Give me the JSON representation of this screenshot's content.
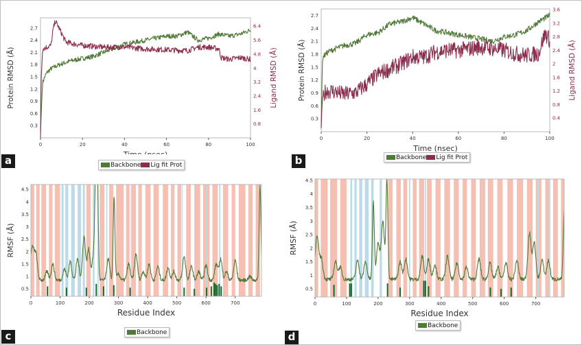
{
  "colors": {
    "backbone": "#507a37",
    "ligand": "#8b2d4e",
    "helix": "#f5bfb2",
    "strand": "#bcdbe9",
    "contact": "#16692b"
  },
  "panels": {
    "a": {
      "tag": "a",
      "legend": {
        "backbone": "Backbone",
        "ligand": "Lig fit Prot"
      }
    },
    "b": {
      "tag": "b",
      "legend": {
        "backbone": "Backbone",
        "ligand": "Lig fit Prot"
      }
    },
    "c": {
      "tag": "c",
      "legend": {
        "backbone": "Backbone"
      }
    },
    "d": {
      "tag": "d",
      "legend": {
        "backbone": "Backbone"
      }
    }
  },
  "chart_data": [
    {
      "id": "a",
      "type": "line",
      "xlabel": "Time (nsec)",
      "ylabel": "Protein RMSD (Å)",
      "y2label": "Ligand RMSD (Å)",
      "xlim": [
        0,
        100
      ],
      "ylim": [
        0,
        2.95
      ],
      "y2lim": [
        0,
        6.88
      ],
      "xticks": [
        0,
        20,
        40,
        60,
        80,
        100
      ],
      "yticks": [
        0.3,
        0.6,
        0.9,
        1.2,
        1.5,
        1.8,
        2.1,
        2.4,
        2.7
      ],
      "y2ticks": [
        0.8,
        1.6,
        2.4,
        3.2,
        4.0,
        4.8,
        5.6,
        6.4
      ],
      "legend_position": "bottom-center",
      "series": [
        {
          "name": "Backbone",
          "axis": "left",
          "noise": 0.06,
          "x": [
            0,
            0.5,
            1,
            2,
            3,
            5,
            7,
            10,
            15,
            20,
            25,
            30,
            35,
            40,
            45,
            50,
            55,
            60,
            65,
            70,
            75,
            80,
            85,
            90,
            95,
            100
          ],
          "y": [
            0.1,
            0.8,
            1.35,
            1.5,
            1.6,
            1.7,
            1.75,
            1.82,
            1.9,
            1.95,
            2.0,
            2.1,
            2.2,
            2.3,
            2.35,
            2.4,
            2.45,
            2.5,
            2.5,
            2.6,
            2.4,
            2.45,
            2.55,
            2.5,
            2.55,
            2.65
          ]
        },
        {
          "name": "Lig fit Prot",
          "axis": "right",
          "noise": 0.07,
          "x": [
            0,
            0.3,
            1,
            3,
            5,
            6,
            7,
            8,
            10,
            12,
            15,
            20,
            30,
            40,
            50,
            60,
            70,
            75,
            80,
            85,
            86,
            90,
            95,
            100
          ],
          "y": [
            0.0,
            3.3,
            5.1,
            5.2,
            5.3,
            6.2,
            6.7,
            6.5,
            6.0,
            5.5,
            5.4,
            5.3,
            5.2,
            5.2,
            5.1,
            5.05,
            5.0,
            5.2,
            5.2,
            5.1,
            4.6,
            4.5,
            4.6,
            4.5
          ]
        }
      ]
    },
    {
      "id": "b",
      "type": "line",
      "xlabel": "Time (nsec)",
      "ylabel": "Protein RMSD (Å)",
      "y2label": "Ligand RMSD (Å)",
      "xlim": [
        0,
        100
      ],
      "ylim": [
        0,
        2.85
      ],
      "y2lim": [
        0,
        3.62
      ],
      "xticks": [
        0,
        20,
        40,
        60,
        80,
        100
      ],
      "yticks": [
        0.3,
        0.6,
        0.9,
        1.2,
        1.5,
        1.8,
        2.1,
        2.4,
        2.7
      ],
      "y2ticks": [
        0.4,
        0.8,
        1.2,
        1.6,
        2.0,
        2.4,
        2.8,
        3.2,
        3.6
      ],
      "legend_position": "bottom-center",
      "series": [
        {
          "name": "Backbone",
          "axis": "left",
          "noise": 0.07,
          "x": [
            0,
            0.5,
            1,
            3,
            5,
            10,
            15,
            20,
            25,
            30,
            35,
            40,
            45,
            50,
            55,
            60,
            65,
            70,
            75,
            80,
            85,
            90,
            95,
            100
          ],
          "y": [
            0.1,
            1.6,
            1.75,
            1.85,
            1.9,
            2.0,
            2.05,
            2.25,
            2.3,
            2.5,
            2.55,
            2.65,
            2.5,
            2.35,
            2.3,
            2.25,
            2.2,
            2.15,
            2.1,
            2.2,
            2.25,
            2.35,
            2.55,
            2.7
          ]
        },
        {
          "name": "Lig fit Prot",
          "axis": "right",
          "noise": 0.2,
          "x": [
            0,
            0.5,
            2,
            5,
            10,
            15,
            20,
            25,
            30,
            35,
            40,
            45,
            50,
            55,
            60,
            65,
            70,
            75,
            80,
            85,
            90,
            95,
            98,
            100
          ],
          "y": [
            0.1,
            1.0,
            1.2,
            1.2,
            1.1,
            1.15,
            1.4,
            1.7,
            1.85,
            2.0,
            2.2,
            2.2,
            2.35,
            2.4,
            2.4,
            2.45,
            2.5,
            2.45,
            2.4,
            2.3,
            2.25,
            2.3,
            2.9,
            2.7
          ]
        }
      ]
    },
    {
      "id": "c",
      "type": "line",
      "xlabel": "Residue Index",
      "ylabel": "RMSF (Å)",
      "xlim": [
        0,
        790
      ],
      "ylim": [
        0.2,
        4.7
      ],
      "xticks": [
        0,
        100,
        200,
        300,
        400,
        500,
        600,
        700
      ],
      "yticks": [
        0.5,
        1.0,
        1.5,
        2.0,
        2.5,
        3.0,
        3.5,
        4.0,
        4.5
      ],
      "legend_position": "bottom-center",
      "baseline": 0.85,
      "noise": 0.07,
      "peaks": [
        [
          3,
          1.9
        ],
        [
          10,
          1.45
        ],
        [
          18,
          1.75
        ],
        [
          55,
          1.2
        ],
        [
          75,
          1.5
        ],
        [
          115,
          1.3
        ],
        [
          135,
          1.6
        ],
        [
          160,
          1.7
        ],
        [
          182,
          2.6
        ],
        [
          198,
          2.1
        ],
        [
          215,
          1.9
        ],
        [
          222,
          4.7
        ],
        [
          228,
          4.7
        ],
        [
          265,
          1.7
        ],
        [
          285,
          4.2
        ],
        [
          300,
          1.1
        ],
        [
          335,
          1.5
        ],
        [
          360,
          1.9
        ],
        [
          385,
          1.2
        ],
        [
          405,
          1.5
        ],
        [
          435,
          1.4
        ],
        [
          470,
          1.35
        ],
        [
          490,
          1.2
        ],
        [
          525,
          1.8
        ],
        [
          550,
          1.4
        ],
        [
          575,
          1.2
        ],
        [
          600,
          1.45
        ],
        [
          635,
          1.5
        ],
        [
          650,
          1.7
        ],
        [
          670,
          1.2
        ],
        [
          700,
          1.65
        ],
        [
          750,
          1.0
        ],
        [
          785,
          4.7
        ]
      ],
      "helix_regions": [
        [
          0,
          12
        ],
        [
          18,
          30
        ],
        [
          36,
          52
        ],
        [
          62,
          74
        ],
        [
          82,
          100
        ],
        [
          190,
          205
        ],
        [
          236,
          252
        ],
        [
          268,
          282
        ],
        [
          292,
          318
        ],
        [
          326,
          338
        ],
        [
          345,
          360
        ],
        [
          368,
          380
        ],
        [
          392,
          410
        ],
        [
          420,
          438
        ],
        [
          452,
          470
        ],
        [
          480,
          492
        ],
        [
          502,
          515
        ],
        [
          532,
          548
        ],
        [
          560,
          580
        ],
        [
          590,
          612
        ],
        [
          622,
          640
        ],
        [
          658,
          676
        ],
        [
          688,
          700
        ],
        [
          712,
          735
        ],
        [
          745,
          760
        ],
        [
          770,
          785
        ]
      ],
      "strand_regions": [
        [
          105,
          112
        ],
        [
          118,
          128
        ],
        [
          138,
          150
        ],
        [
          160,
          172
        ],
        [
          178,
          185
        ],
        [
          212,
          218
        ],
        [
          228,
          232
        ],
        [
          258,
          262
        ],
        [
          342,
          345
        ],
        [
          517,
          520
        ],
        [
          600,
          603
        ],
        [
          645,
          649
        ]
      ],
      "contacts": [
        [
          57,
          0.4
        ],
        [
          122,
          0.35
        ],
        [
          190,
          0.35
        ],
        [
          224,
          0.5
        ],
        [
          249,
          0.4
        ],
        [
          284,
          0.45
        ],
        [
          340,
          0.35
        ],
        [
          525,
          0.35
        ],
        [
          560,
          0.3
        ],
        [
          602,
          0.35
        ],
        [
          618,
          0.4
        ],
        [
          628,
          0.55
        ],
        [
          633,
          0.5
        ],
        [
          638,
          0.45
        ],
        [
          645,
          0.5
        ],
        [
          652,
          0.4
        ]
      ],
      "series": [
        {
          "name": "Backbone"
        }
      ]
    },
    {
      "id": "d",
      "type": "line",
      "xlabel": "Residue Index",
      "ylabel": "RMSF (Å)",
      "xlim": [
        0,
        790
      ],
      "ylim": [
        0.2,
        4.55
      ],
      "xticks": [
        0,
        100,
        200,
        300,
        400,
        500,
        600,
        700
      ],
      "yticks": [
        0.5,
        1.0,
        1.5,
        2.0,
        2.5,
        3.0,
        3.5,
        4.0,
        4.5
      ],
      "legend_position": "bottom-center",
      "baseline": 0.85,
      "noise": 0.07,
      "peaks": [
        [
          3,
          1.55
        ],
        [
          8,
          1.9
        ],
        [
          20,
          1.6
        ],
        [
          65,
          1.5
        ],
        [
          80,
          1.3
        ],
        [
          135,
          1.55
        ],
        [
          160,
          1.5
        ],
        [
          185,
          3.7
        ],
        [
          200,
          2.2
        ],
        [
          215,
          3.0
        ],
        [
          228,
          4.55
        ],
        [
          270,
          1.5
        ],
        [
          288,
          1.6
        ],
        [
          340,
          1.7
        ],
        [
          360,
          1.6
        ],
        [
          380,
          1.4
        ],
        [
          420,
          1.7
        ],
        [
          450,
          1.45
        ],
        [
          480,
          1.3
        ],
        [
          520,
          1.6
        ],
        [
          555,
          1.45
        ],
        [
          580,
          1.3
        ],
        [
          605,
          1.45
        ],
        [
          640,
          1.55
        ],
        [
          680,
          2.55
        ],
        [
          695,
          2.2
        ],
        [
          720,
          1.55
        ],
        [
          740,
          1.55
        ],
        [
          790,
          3.35
        ]
      ],
      "helix_regions": [
        [
          0,
          10
        ],
        [
          18,
          40
        ],
        [
          48,
          70
        ],
        [
          80,
          100
        ],
        [
          232,
          246
        ],
        [
          258,
          272
        ],
        [
          280,
          292
        ],
        [
          310,
          322
        ],
        [
          330,
          346
        ],
        [
          355,
          370
        ],
        [
          382,
          398
        ],
        [
          410,
          428
        ],
        [
          440,
          456
        ],
        [
          468,
          482
        ],
        [
          495,
          510
        ],
        [
          522,
          540
        ],
        [
          548,
          565
        ],
        [
          578,
          595
        ],
        [
          610,
          628
        ],
        [
          640,
          660
        ],
        [
          672,
          690
        ],
        [
          700,
          718
        ],
        [
          730,
          745
        ],
        [
          755,
          770
        ],
        [
          780,
          790
        ]
      ],
      "strand_regions": [
        [
          112,
          118
        ],
        [
          125,
          132
        ],
        [
          140,
          150
        ],
        [
          158,
          170
        ],
        [
          178,
          186
        ],
        [
          205,
          212
        ],
        [
          298,
          302
        ],
        [
          348,
          352
        ],
        [
          535,
          538
        ],
        [
          706,
          710
        ],
        [
          742,
          746
        ]
      ],
      "contacts": [
        [
          60,
          0.45
        ],
        [
          110,
          0.5
        ],
        [
          115,
          0.5
        ],
        [
          230,
          0.5
        ],
        [
          270,
          0.35
        ],
        [
          345,
          0.6
        ],
        [
          350,
          0.6
        ],
        [
          360,
          0.4
        ],
        [
          556,
          0.35
        ],
        [
          590,
          0.3
        ],
        [
          622,
          0.35
        ]
      ],
      "series": [
        {
          "name": "Backbone"
        }
      ]
    }
  ]
}
